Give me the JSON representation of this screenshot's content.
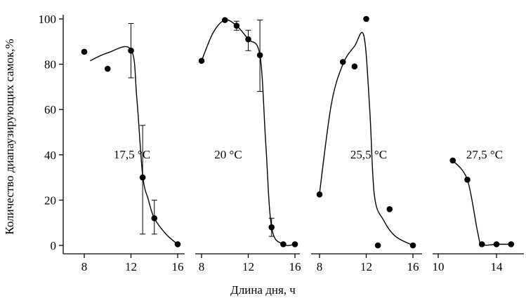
{
  "chart_data": {
    "type": "scatter",
    "ylabel": "Количество диапаузирующих самок,%",
    "xlabel": "Длина дня, ч",
    "ylim": [
      0,
      100
    ],
    "yticks": [
      0,
      20,
      40,
      60,
      80,
      100
    ],
    "panels": [
      {
        "label": "17,5 °C",
        "xlim": [
          7,
          17
        ],
        "xticks": [
          8,
          12,
          16
        ],
        "points": [
          {
            "x": 8,
            "y": 85.5
          },
          {
            "x": 10,
            "y": 78
          },
          {
            "x": 12,
            "y": 86
          },
          {
            "x": 13,
            "y": 30
          },
          {
            "x": 14,
            "y": 12
          },
          {
            "x": 16,
            "y": 0.5
          }
        ],
        "error_bars": [
          {
            "x": 12,
            "low": 74,
            "high": 98
          },
          {
            "x": 13,
            "low": 5,
            "high": 53
          },
          {
            "x": 14,
            "low": 5,
            "high": 20
          }
        ],
        "curve": [
          [
            8.5,
            81.5
          ],
          [
            10,
            85
          ],
          [
            12,
            86.5
          ],
          [
            12.5,
            65
          ],
          [
            13,
            31
          ],
          [
            13.5,
            20
          ],
          [
            14,
            12
          ],
          [
            15,
            5
          ],
          [
            16,
            0.5
          ]
        ]
      },
      {
        "label": "20 °C",
        "xlim": [
          7,
          17
        ],
        "xticks": [
          8,
          12,
          16
        ],
        "points": [
          {
            "x": 8,
            "y": 81.5
          },
          {
            "x": 10,
            "y": 99.5
          },
          {
            "x": 11,
            "y": 97
          },
          {
            "x": 12,
            "y": 91
          },
          {
            "x": 13,
            "y": 84
          },
          {
            "x": 14,
            "y": 8
          },
          {
            "x": 15,
            "y": 0.5
          },
          {
            "x": 16,
            "y": 0.5
          }
        ],
        "error_bars": [
          {
            "x": 11,
            "low": 95,
            "high": 99
          },
          {
            "x": 12,
            "low": 86,
            "high": 95
          },
          {
            "x": 13,
            "low": 68,
            "high": 99.5
          },
          {
            "x": 14,
            "low": 4,
            "high": 12
          }
        ],
        "curve": [
          [
            8,
            81.5
          ],
          [
            9,
            94
          ],
          [
            10,
            99.5
          ],
          [
            11,
            97
          ],
          [
            12,
            91
          ],
          [
            13,
            84
          ],
          [
            13.5,
            45
          ],
          [
            14,
            8
          ],
          [
            15,
            0.5
          ],
          [
            16,
            0.5
          ]
        ]
      },
      {
        "label": "25,5 °C",
        "xlim": [
          7,
          17
        ],
        "xticks": [
          8,
          12,
          16
        ],
        "points": [
          {
            "x": 8,
            "y": 22.5
          },
          {
            "x": 10,
            "y": 81
          },
          {
            "x": 11,
            "y": 79
          },
          {
            "x": 12,
            "y": 100
          },
          {
            "x": 13,
            "y": 0
          },
          {
            "x": 14,
            "y": 16
          },
          {
            "x": 16,
            "y": 0
          }
        ],
        "error_bars": [],
        "curve": [
          [
            8,
            23
          ],
          [
            9,
            62
          ],
          [
            10,
            80
          ],
          [
            11,
            88
          ],
          [
            11.8,
            92.5
          ],
          [
            12.3,
            60
          ],
          [
            12.7,
            22
          ],
          [
            13.5,
            11
          ],
          [
            14.5,
            4
          ],
          [
            16,
            0
          ]
        ]
      },
      {
        "label": "27,5 °C",
        "xlim": [
          9,
          16
        ],
        "xticks": [
          10,
          14
        ],
        "points": [
          {
            "x": 11,
            "y": 37.5
          },
          {
            "x": 12,
            "y": 29
          },
          {
            "x": 13,
            "y": 0.5
          },
          {
            "x": 14,
            "y": 0.5
          },
          {
            "x": 15,
            "y": 0.5
          }
        ],
        "error_bars": [],
        "curve": [
          [
            11,
            37.5
          ],
          [
            12,
            29
          ],
          [
            12.7,
            6
          ],
          [
            13,
            0.5
          ],
          [
            14,
            0.5
          ],
          [
            15,
            0.5
          ]
        ]
      }
    ]
  }
}
